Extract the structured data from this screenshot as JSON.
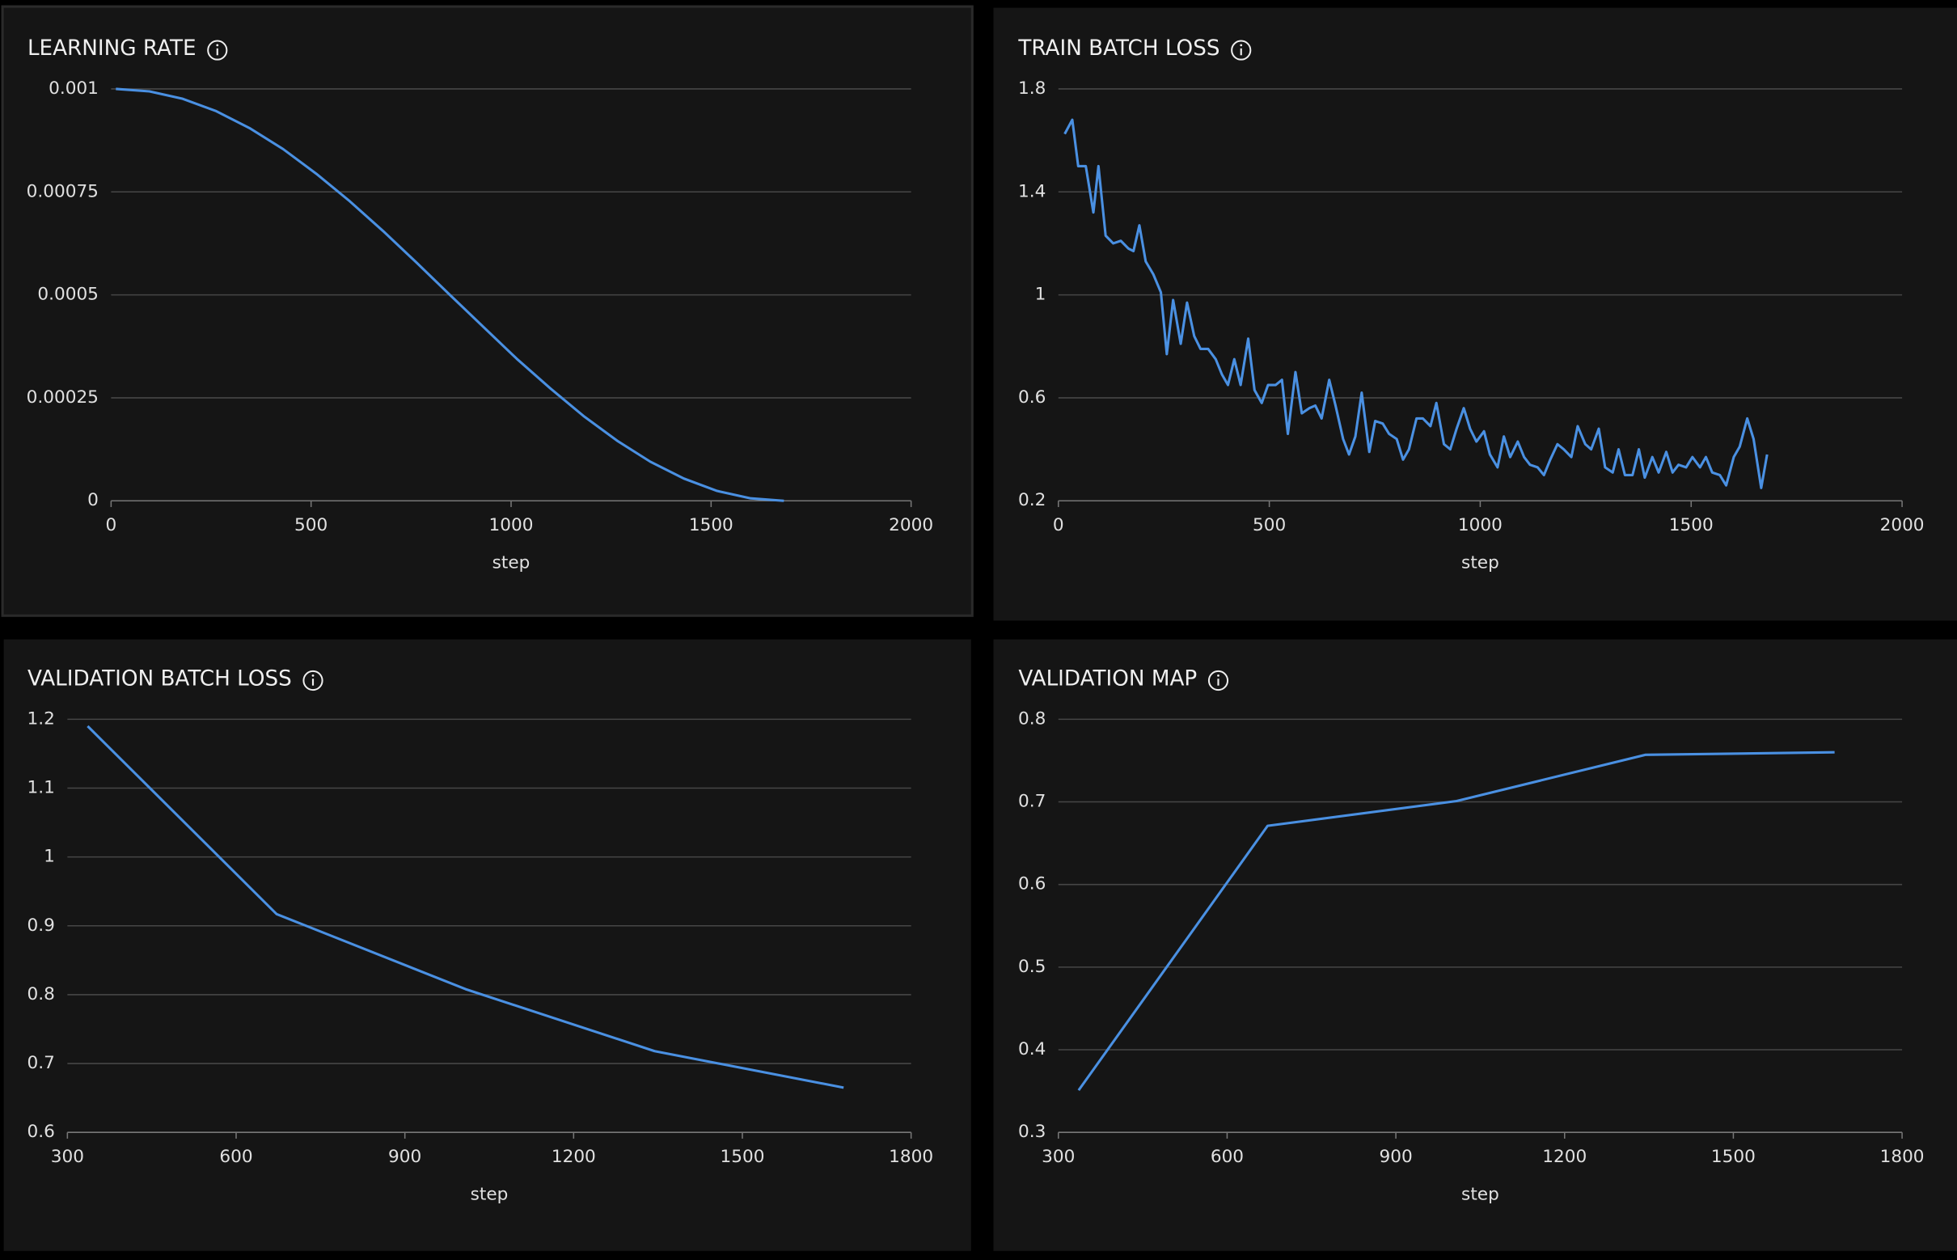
{
  "chart_data": [
    {
      "type": "line",
      "title": "LEARNING RATE",
      "x_label": "step",
      "color": "#4a90e2",
      "xlim": [
        0,
        2000
      ],
      "xticks": [
        0,
        500,
        1000,
        1500,
        2000
      ],
      "ylim": [
        0,
        0.001
      ],
      "yticks": [
        0,
        0.00025,
        0.0005,
        0.00075,
        0.001
      ],
      "grid": true,
      "x": [
        12,
        96,
        179,
        263,
        346,
        430,
        513,
        597,
        680,
        764,
        847,
        931,
        1014,
        1098,
        1181,
        1265,
        1348,
        1432,
        1515,
        1599,
        1682
      ],
      "values": [
        0.001,
        0.000994,
        0.000976,
        0.000946,
        0.000905,
        0.000854,
        0.000794,
        0.000727,
        0.000655,
        0.000578,
        0.0005,
        0.000422,
        0.000345,
        0.000273,
        0.000206,
        0.000146,
        9.5e-05,
        5.4e-05,
        2.4e-05,
        6e-06,
        0
      ]
    },
    {
      "type": "line",
      "title": "TRAIN BATCH LOSS",
      "x_label": "step",
      "color": "#4a90e2",
      "xlim": [
        0,
        2000
      ],
      "xticks": [
        0,
        500,
        1000,
        1500,
        2000
      ],
      "ylim": [
        0.2,
        1.8
      ],
      "yticks": [
        0.2,
        0.6,
        1,
        1.4,
        1.8
      ],
      "grid": true,
      "x": [
        15,
        33,
        47,
        65,
        83,
        95,
        112,
        130,
        148,
        166,
        178,
        192,
        207,
        225,
        243,
        257,
        272,
        290,
        305,
        322,
        337,
        355,
        373,
        388,
        402,
        417,
        432,
        450,
        465,
        482,
        497,
        515,
        530,
        544,
        562,
        577,
        595,
        609,
        624,
        642,
        657,
        675,
        689,
        704,
        719,
        737,
        751,
        769,
        784,
        802,
        817,
        831,
        849,
        864,
        882,
        896,
        914,
        929,
        944,
        961,
        976,
        991,
        1009,
        1023,
        1041,
        1056,
        1071,
        1089,
        1104,
        1118,
        1136,
        1151,
        1166,
        1183,
        1198,
        1216,
        1231,
        1249,
        1263,
        1281,
        1296,
        1314,
        1328,
        1343,
        1361,
        1376,
        1390,
        1408,
        1423,
        1441,
        1456,
        1470,
        1488,
        1503,
        1521,
        1535,
        1550,
        1568,
        1583,
        1601,
        1615,
        1633,
        1648,
        1666,
        1680
      ],
      "values": [
        1.625,
        1.68,
        1.5,
        1.5,
        1.32,
        1.5,
        1.23,
        1.2,
        1.21,
        1.18,
        1.17,
        1.27,
        1.13,
        1.08,
        1.01,
        0.77,
        0.98,
        0.81,
        0.97,
        0.84,
        0.79,
        0.79,
        0.75,
        0.69,
        0.65,
        0.75,
        0.65,
        0.83,
        0.63,
        0.58,
        0.65,
        0.65,
        0.67,
        0.46,
        0.7,
        0.54,
        0.56,
        0.57,
        0.52,
        0.67,
        0.57,
        0.44,
        0.38,
        0.45,
        0.62,
        0.39,
        0.51,
        0.5,
        0.46,
        0.44,
        0.36,
        0.4,
        0.52,
        0.52,
        0.49,
        0.58,
        0.42,
        0.4,
        0.48,
        0.56,
        0.48,
        0.43,
        0.47,
        0.38,
        0.33,
        0.45,
        0.37,
        0.43,
        0.37,
        0.34,
        0.33,
        0.3,
        0.36,
        0.42,
        0.4,
        0.37,
        0.49,
        0.42,
        0.4,
        0.48,
        0.33,
        0.31,
        0.4,
        0.3,
        0.3,
        0.4,
        0.29,
        0.37,
        0.31,
        0.39,
        0.31,
        0.34,
        0.33,
        0.37,
        0.33,
        0.37,
        0.31,
        0.3,
        0.26,
        0.37,
        0.41,
        0.52,
        0.44,
        0.25,
        0.38
      ]
    },
    {
      "type": "line",
      "title": "VALIDATION BATCH LOSS",
      "x_label": "step",
      "color": "#4a90e2",
      "xlim": [
        300,
        1800
      ],
      "xticks": [
        300,
        600,
        900,
        1200,
        1500,
        1800
      ],
      "ylim": [
        0.6,
        1.2
      ],
      "yticks": [
        0.6,
        0.7,
        0.8,
        0.9,
        1,
        1.1,
        1.2
      ],
      "grid": true,
      "x": [
        336,
        672,
        1008,
        1344,
        1680
      ],
      "values": [
        1.19,
        0.917,
        0.808,
        0.718,
        0.665
      ]
    },
    {
      "type": "line",
      "title": "VALIDATION MAP",
      "x_label": "step",
      "color": "#4a90e2",
      "xlim": [
        300,
        1800
      ],
      "xticks": [
        300,
        600,
        900,
        1200,
        1500,
        1800
      ],
      "ylim": [
        0.3,
        0.8
      ],
      "yticks": [
        0.3,
        0.4,
        0.5,
        0.6,
        0.7,
        0.8
      ],
      "grid": true,
      "x": [
        336,
        672,
        1008,
        1344,
        1680
      ],
      "values": [
        0.351,
        0.671,
        0.701,
        0.757,
        0.76
      ]
    }
  ]
}
